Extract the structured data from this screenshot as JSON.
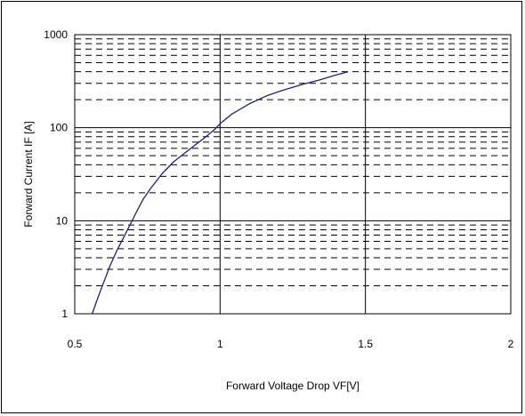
{
  "chart_data": {
    "type": "line",
    "title": "",
    "xlabel": "Forward Voltage Drop VF[V]",
    "ylabel": "Forward Current  IF [A]",
    "xlim": [
      0.5,
      2
    ],
    "ylim": [
      1,
      1000
    ],
    "y_scale": "log",
    "grid": true,
    "x_ticks": [
      0.5,
      1,
      1.5,
      2
    ],
    "x_tick_labels": [
      "0.5",
      "1",
      "1.5",
      "2"
    ],
    "y_ticks": [
      1,
      10,
      100,
      1000
    ],
    "y_tick_labels": [
      "1",
      "10",
      "100",
      "1000"
    ],
    "line_color": "#1f1f80",
    "series": [
      {
        "x": [
          0.56,
          0.58,
          0.6,
          0.62,
          0.645,
          0.67,
          0.69,
          0.71,
          0.735,
          0.76,
          0.8,
          0.84,
          0.89,
          0.94,
          0.98,
          1.0,
          1.04,
          1.1,
          1.16,
          1.22,
          1.28,
          1.34,
          1.4,
          1.44
        ],
        "y": [
          1,
          1.5,
          2.2,
          3.2,
          4.8,
          6.8,
          9,
          12,
          17,
          22,
          32,
          43,
          57,
          75,
          95,
          110,
          140,
          180,
          220,
          255,
          290,
          325,
          370,
          400
        ]
      }
    ]
  }
}
